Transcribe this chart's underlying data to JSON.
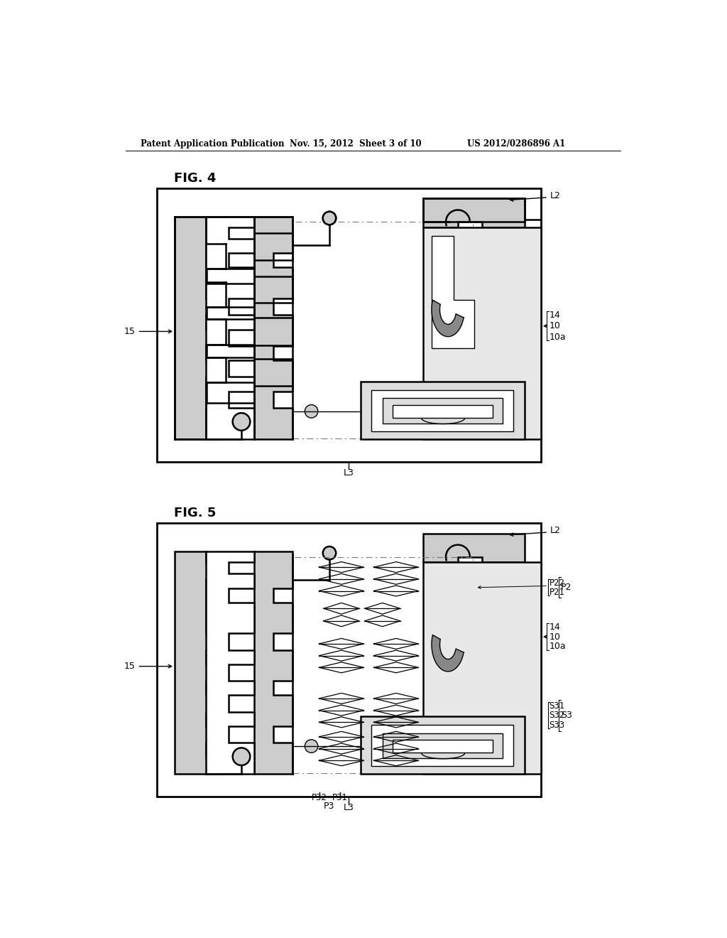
{
  "bg": "#ffffff",
  "lc": "#000000",
  "gray": "#888888",
  "lw": 1.8,
  "tlw": 1.0,
  "vlw": 0.7,
  "header": "Patent Application Publication",
  "date": "Nov. 15, 2012  Sheet 3 of 10",
  "patent": "US 2012/0286896 A1",
  "fig4": "FIG. 4",
  "fig5": "FIG. 5"
}
